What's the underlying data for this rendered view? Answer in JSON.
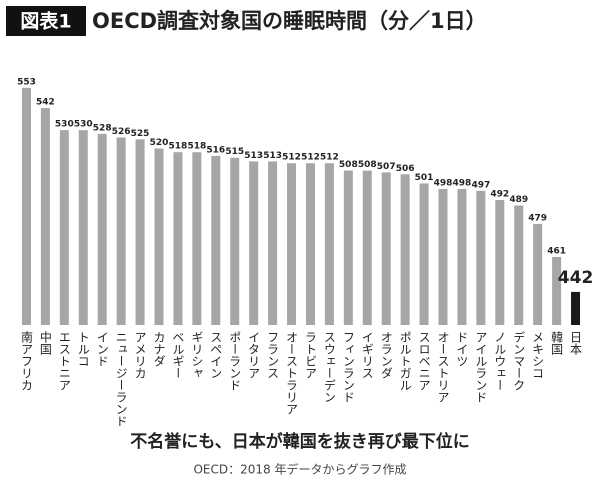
{
  "chart_data": {
    "type": "bar",
    "badge": "図表1",
    "title": "OECD調査対象国の睡眠時間（分／1日）",
    "subtitle": "不名誉にも、日本が韓国を抜き再び最下位に",
    "source": "OECD：2018 年データからグラフ作成",
    "categories": [
      "南アフリカ",
      "中国",
      "エストニア",
      "トルコ",
      "インド",
      "ニュージーランド",
      "アメリカ",
      "カナダ",
      "ベルギー",
      "ギリシャ",
      "スペイン",
      "ポーランド",
      "イタリア",
      "フランス",
      "オーストラリア",
      "ラトビア",
      "スウェーデン",
      "フィンランド",
      "イギリス",
      "オランダ",
      "ポルトガル",
      "スロベニア",
      "オーストリア",
      "ドイツ",
      "アイルランド",
      "ノルウェー",
      "デンマーク",
      "メキシコ",
      "韓国",
      "日本"
    ],
    "values": [
      553,
      542,
      530,
      530,
      528,
      526,
      525,
      520,
      518,
      518,
      516,
      515,
      513,
      513,
      512,
      512,
      512,
      508,
      508,
      507,
      506,
      501,
      498,
      498,
      497,
      492,
      489,
      479,
      461,
      442
    ],
    "color": "#a6a6a6",
    "colors": [
      "#a6a6a6",
      "#a6a6a6",
      "#a6a6a6",
      "#a6a6a6",
      "#a6a6a6",
      "#a6a6a6",
      "#a6a6a6",
      "#a6a6a6",
      "#a6a6a6",
      "#a6a6a6",
      "#a6a6a6",
      "#a6a6a6",
      "#a6a6a6",
      "#a6a6a6",
      "#a6a6a6",
      "#a6a6a6",
      "#a6a6a6",
      "#a6a6a6",
      "#a6a6a6",
      "#a6a6a6",
      "#a6a6a6",
      "#a6a6a6",
      "#a6a6a6",
      "#a6a6a6",
      "#a6a6a6",
      "#a6a6a6",
      "#a6a6a6",
      "#a6a6a6",
      "#a6a6a6",
      "#1a1a1a"
    ],
    "ylim": [
      424,
      560
    ]
  }
}
